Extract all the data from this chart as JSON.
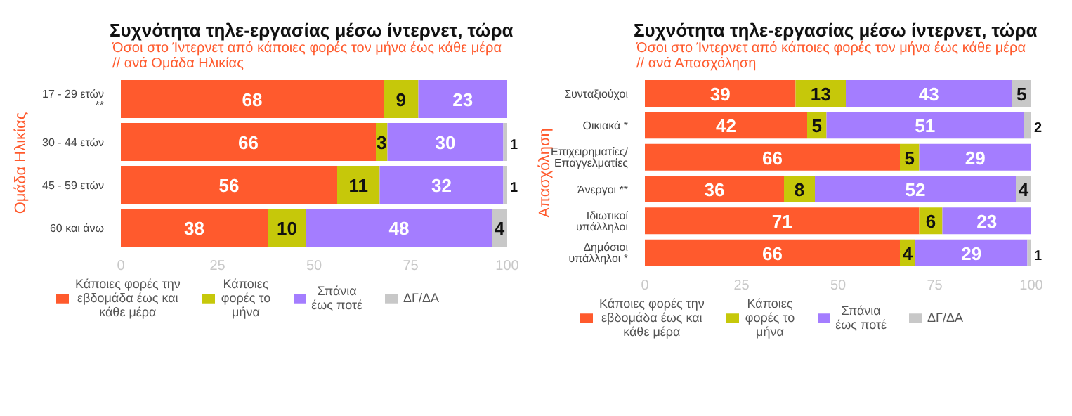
{
  "chart_data": [
    {
      "type": "bar",
      "orientation": "horizontal",
      "stacked": true,
      "title": "Συχνότητα τηλε-εργασίας μέσω ίντερνετ, τώρα",
      "subtitle": "Όσοι στο Ίντερνετ από κάποιες φορές τον μήνα έως κάθε μέρα // ανά Ομάδα Ηλικίας",
      "ylabel": "Ομάδα Ηλικίας",
      "categories": [
        "17 - 29 ετών **",
        "30 - 44 ετών",
        "45 - 59 ετών",
        "60 και άνω"
      ],
      "series": [
        {
          "name": "Κάποιες φορές την εβδομάδα έως και κάθε μέρα",
          "color": "#ff5a2d",
          "values": [
            68,
            66,
            56,
            38
          ]
        },
        {
          "name": "Κάποιες φορές το μήνα",
          "color": "#c6c80a",
          "values": [
            9,
            3,
            11,
            10
          ]
        },
        {
          "name": "Σπάνια έως ποτέ",
          "color": "#a47dff",
          "values": [
            23,
            30,
            32,
            48
          ]
        },
        {
          "name": "ΔΓ/ΔΑ",
          "color": "#c8c8c8",
          "values": [
            null,
            1,
            1,
            4
          ]
        }
      ],
      "xlim": [
        0,
        100
      ],
      "xticks": [
        0,
        25,
        50,
        75,
        100
      ],
      "data_labels": true,
      "legend": "bottom",
      "grid": false
    },
    {
      "type": "bar",
      "orientation": "horizontal",
      "stacked": true,
      "title": "Συχνότητα τηλε-εργασίας μέσω ίντερνετ, τώρα",
      "subtitle": "Όσοι στο Ίντερνετ από κάποιες φορές τον μήνα έως κάθε μέρα // ανά Απασχόληση",
      "ylabel": "Απασχόληση",
      "categories": [
        "Συνταξιούχοι",
        "Οικιακά *",
        "Επιχειρηματίες/Επαγγελματίες",
        "Άνεργοι **",
        "Ιδιωτικοί υπάλληλοι",
        "Δημόσιοι υπάλληλοι *"
      ],
      "series": [
        {
          "name": "Κάποιες φορές την εβδομάδα έως και κάθε μέρα",
          "color": "#ff5a2d",
          "values": [
            39,
            42,
            66,
            36,
            71,
            66
          ]
        },
        {
          "name": "Κάποιες φορές το μήνα",
          "color": "#c6c80a",
          "values": [
            13,
            5,
            5,
            8,
            6,
            4
          ]
        },
        {
          "name": "Σπάνια έως ποτέ",
          "color": "#a47dff",
          "values": [
            43,
            51,
            29,
            52,
            23,
            29
          ]
        },
        {
          "name": "ΔΓ/ΔΑ",
          "color": "#c8c8c8",
          "values": [
            5,
            2,
            null,
            4,
            null,
            1
          ]
        }
      ],
      "xlim": [
        0,
        100
      ],
      "xticks": [
        0,
        25,
        50,
        75,
        100
      ],
      "data_labels": true,
      "legend": "bottom",
      "grid": false
    }
  ]
}
